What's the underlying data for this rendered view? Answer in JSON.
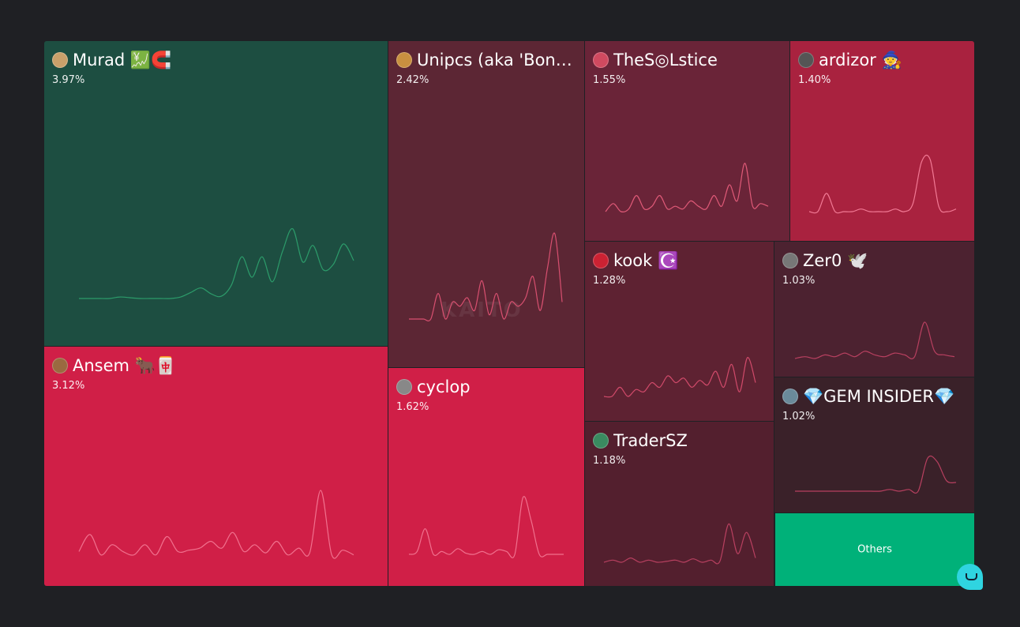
{
  "chart_data": {
    "type": "treemap",
    "tiles": [
      {
        "id": "murad",
        "name": "Murad 💹🧲",
        "pct_label": "3.97%",
        "value": 3.97,
        "color": "#1d4e41",
        "line": "#2c9b6a",
        "avatar_color": "#c9a06a",
        "spark": [
          0,
          0,
          0,
          0,
          0.02,
          0.01,
          0,
          0,
          0,
          0,
          0.02,
          0.08,
          0.14,
          0.06,
          0.03,
          0.18,
          0.55,
          0.28,
          0.55,
          0.22,
          0.62,
          0.92,
          0.48,
          0.7,
          0.38,
          0.45,
          0.72,
          0.5
        ]
      },
      {
        "id": "ansem",
        "name": "Ansem 🐂🀄",
        "pct_label": "3.12%",
        "value": 3.12,
        "color": "#d01f47",
        "line": "#f0708d",
        "avatar_color": "#9a6a40",
        "spark": [
          0.1,
          0.35,
          0.05,
          0.2,
          0.1,
          0.05,
          0.2,
          0.05,
          0.32,
          0.1,
          0.12,
          0.15,
          0.25,
          0.15,
          0.38,
          0.1,
          0.2,
          0.08,
          0.25,
          0.05,
          0.15,
          0.08,
          1.0,
          0.05,
          0.12,
          0.05
        ]
      },
      {
        "id": "unipcs",
        "name": "Unipcs (aka 'Bonk...",
        "pct_label": "2.42%",
        "value": 2.42,
        "color": "#5c2634",
        "line": "#d85070",
        "avatar_color": "#c89040",
        "spark": [
          0,
          0,
          0,
          0,
          0.3,
          0,
          0.2,
          0.15,
          0.25,
          0.1,
          0.45,
          0.05,
          0.3,
          0,
          0.2,
          0.15,
          0.25,
          0.5,
          0.1,
          0.6,
          1.0,
          0.2
        ]
      },
      {
        "id": "cyclop",
        "name": "cyclop",
        "pct_label": "1.62%",
        "value": 1.62,
        "color": "#d01f47",
        "line": "#f0708d",
        "avatar_color": "#888888",
        "spark": [
          0,
          0.05,
          0.45,
          0,
          0.05,
          0,
          0.1,
          0.02,
          0,
          0.05,
          0,
          0.08,
          0.05,
          0,
          1.0,
          0.6,
          0,
          0,
          0,
          0
        ]
      },
      {
        "id": "solstice",
        "name": "TheS◎Lstice",
        "pct_label": "1.55%",
        "value": 1.55,
        "color": "#6a2438",
        "line": "#e05a78",
        "avatar_color": "#d04a60",
        "spark": [
          0,
          0.15,
          0,
          0.05,
          0.3,
          0.05,
          0.1,
          0.3,
          0.05,
          0.1,
          0.05,
          0.2,
          0.1,
          0.05,
          0.3,
          0.1,
          0.5,
          0.2,
          0.9,
          0.1,
          0.15,
          0.1
        ]
      },
      {
        "id": "ardizor",
        "name": "ardizor 🧙",
        "pct_label": "1.40%",
        "value": 1.4,
        "color": "#a9223f",
        "line": "#f27a95",
        "avatar_color": "#555555",
        "spark": [
          0,
          0,
          0.35,
          0,
          0,
          0,
          0.05,
          0,
          0,
          0,
          0.05,
          0,
          0.15,
          0.95,
          1.0,
          0.1,
          0,
          0.05
        ]
      },
      {
        "id": "kook",
        "name": "kook ☪️",
        "pct_label": "1.28%",
        "value": 1.28,
        "color": "#5e2232",
        "line": "#d04a6a",
        "avatar_color": "#cc2233",
        "spark": [
          0,
          0,
          0.2,
          0,
          0.15,
          0.1,
          0.3,
          0.2,
          0.45,
          0.3,
          0.4,
          0.2,
          0.35,
          0.25,
          0.55,
          0.2,
          0.7,
          0.1,
          0.85,
          0.3
        ]
      },
      {
        "id": "zer0",
        "name": "Zer0 🕊️",
        "pct_label": "1.03%",
        "value": 1.03,
        "color": "#4c2230",
        "line": "#b84060",
        "avatar_color": "#777777",
        "spark": [
          0,
          0.05,
          0,
          0.1,
          0.05,
          0.15,
          0.05,
          0.2,
          0.1,
          0.05,
          0.15,
          0.1,
          0.05,
          1.0,
          0.2,
          0.1,
          0.05
        ]
      },
      {
        "id": "tradersz",
        "name": "TraderSZ",
        "pct_label": "1.18%",
        "value": 1.18,
        "color": "#531f2e",
        "line": "#b84060",
        "avatar_color": "#3a8a60",
        "spark": [
          0,
          0.05,
          0,
          0.1,
          0,
          0.05,
          0,
          0.02,
          0.05,
          0,
          0.08,
          0,
          0.05,
          0.02,
          0.9,
          0.2,
          0.7,
          0.1
        ]
      },
      {
        "id": "gem",
        "name": "💎GEM INSIDER💎",
        "pct_label": "1.02%",
        "value": 1.02,
        "color": "#3a2129",
        "line": "#b84060",
        "avatar_color": "#6a8a9a",
        "spark": [
          0,
          0,
          0,
          0,
          0,
          0,
          0,
          0,
          0,
          0,
          0.05,
          0,
          0.05,
          0,
          0.95,
          0.85,
          0.3,
          0.25
        ]
      },
      {
        "id": "others",
        "name": "Others",
        "color": "#00b179"
      }
    ]
  },
  "watermark": "KAITO"
}
